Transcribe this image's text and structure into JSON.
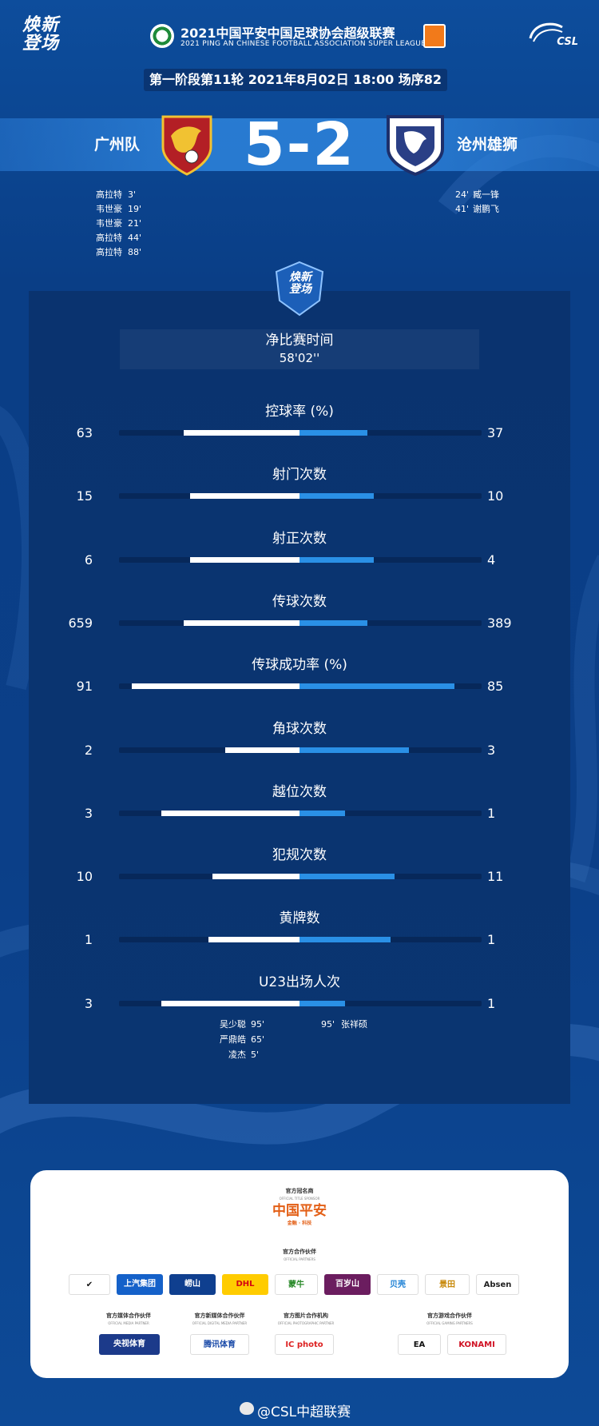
{
  "header": {
    "brand_left": "焕新\n登场",
    "title_cn": "2021中国平安中国足球协会超级联赛",
    "title_en": "2021 PING AN CHINESE FOOTBALL ASSOCIATION SUPER LEAGUE",
    "csl_logo_text": "CSL",
    "round_info": "第一阶段第11轮  2021年8月02日 18:00 场序82"
  },
  "match": {
    "home_team": "广州队",
    "away_team": "沧州雄狮",
    "score": "5-2",
    "home_scorers": [
      {
        "name": "高拉特",
        "minute": "3'"
      },
      {
        "name": "韦世豪",
        "minute": "19'"
      },
      {
        "name": "韦世豪",
        "minute": "21'"
      },
      {
        "name": "高拉特",
        "minute": "44'"
      },
      {
        "name": "高拉特",
        "minute": "88'"
      }
    ],
    "away_scorers": [
      {
        "minute": "24'",
        "name": "臧一锋"
      },
      {
        "minute": "41'",
        "name": "谢鹏飞"
      }
    ]
  },
  "panel": {
    "shield_text": "焕新\n登场",
    "net_time_label": "净比赛时间",
    "net_time_value": "58'02''"
  },
  "stats": [
    {
      "label": "控球率 (%)",
      "home": "63",
      "away": "37",
      "home_ratio": 0.56,
      "away_ratio": 0.33
    },
    {
      "label": "射门次数",
      "home": "15",
      "away": "10",
      "home_ratio": 0.53,
      "away_ratio": 0.36
    },
    {
      "label": "射正次数",
      "home": "6",
      "away": "4",
      "home_ratio": 0.53,
      "away_ratio": 0.36
    },
    {
      "label": "传球次数",
      "home": "659",
      "away": "389",
      "home_ratio": 0.56,
      "away_ratio": 0.33
    },
    {
      "label": "传球成功率 (%)",
      "home": "91",
      "away": "85",
      "home_ratio": 0.81,
      "away_ratio": 0.75
    },
    {
      "label": "角球次数",
      "home": "2",
      "away": "3",
      "home_ratio": 0.36,
      "away_ratio": 0.53
    },
    {
      "label": "越位次数",
      "home": "3",
      "away": "1",
      "home_ratio": 0.67,
      "away_ratio": 0.22
    },
    {
      "label": "犯规次数",
      "home": "10",
      "away": "11",
      "home_ratio": 0.42,
      "away_ratio": 0.46
    },
    {
      "label": "黄牌数",
      "home": "1",
      "away": "1",
      "home_ratio": 0.44,
      "away_ratio": 0.44
    },
    {
      "label": "U23出场人次",
      "home": "3",
      "away": "1",
      "home_ratio": 0.67,
      "away_ratio": 0.22
    }
  ],
  "u23_players": {
    "home": [
      {
        "name": "吴少聪",
        "minute": "95'"
      },
      {
        "name": "严鼎皓",
        "minute": "65'"
      },
      {
        "name": "凌杰",
        "minute": "5'"
      }
    ],
    "away": [
      {
        "minute": "95'",
        "name": "张祥硕"
      }
    ]
  },
  "sponsors": {
    "title_sponsor_head": "官方冠名商",
    "title_sponsor_head_en": "OFFICIAL TITLE SPONSOR",
    "title_sponsor": "中国平安",
    "title_sponsor_sub": "金融 · 科技",
    "partners_head": "官方合作伙伴",
    "partners_head_en": "OFFICIAL PARTNERS",
    "partners": [
      "✔",
      "上汽集团",
      "崂山",
      "DHL",
      "蒙牛",
      "百岁山",
      "贝壳",
      "景田",
      "Absen"
    ],
    "media_head": "官方媒体合作伙伴",
    "media_head_en": "OFFICIAL MEDIA PARTNER",
    "media": "央视体育",
    "digital_head": "官方新媒体合作伙伴",
    "digital_head_en": "OFFICIAL DIGITAL MEDIA PARTNER",
    "digital": "腾讯体育",
    "photo_head": "官方图片合作机构",
    "photo_head_en": "OFFICIAL PHOTOGRAPHIC PARTNER",
    "photo": "IC photo",
    "game_head": "官方游戏合作伙伴",
    "game_head_en": "OFFICIAL GAMING PARTNERS",
    "games": [
      "EA",
      "KONAMI"
    ]
  },
  "footer": {
    "handle": "@CSL中超联赛"
  },
  "colors": {
    "background": "#0b3f88",
    "panel": "#0a3571",
    "home_bar": "#ffffff",
    "away_bar": "#2a90e6",
    "pingan_orange": "#e35f16"
  }
}
